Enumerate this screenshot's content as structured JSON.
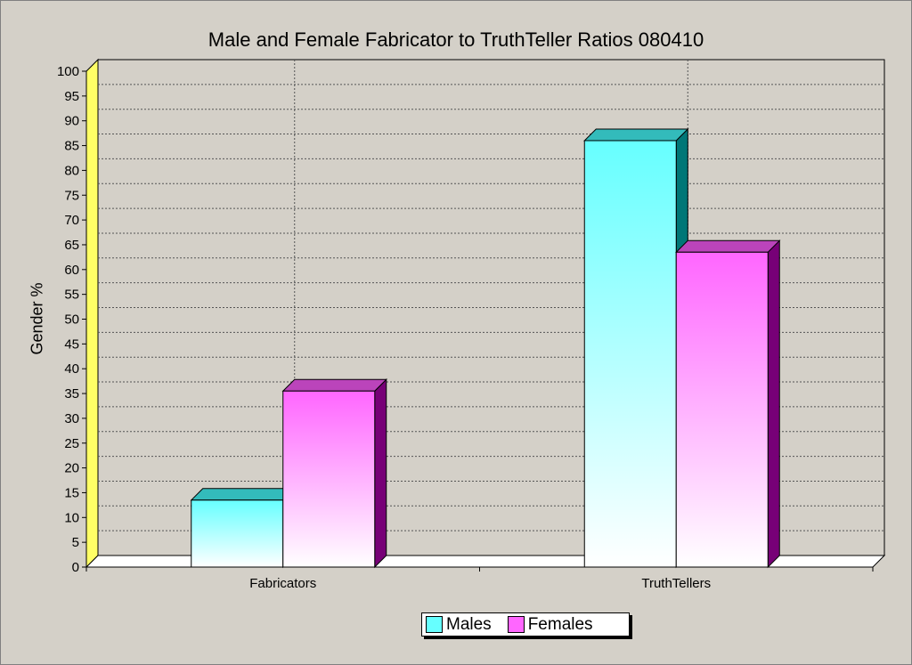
{
  "chart_data": {
    "type": "bar",
    "title": "Male and Female Fabricator to TruthTeller Ratios 080410",
    "xlabel": "",
    "ylabel": "Gender %",
    "categories": [
      "Fabricators",
      "TruthTellers"
    ],
    "series": [
      {
        "name": "Males",
        "values": [
          13.5,
          86
        ],
        "color": "#66ffff"
      },
      {
        "name": "Females",
        "values": [
          35.5,
          63.5
        ],
        "color": "#ff66ff"
      }
    ],
    "ylim": [
      0,
      100
    ],
    "yticks": [
      0,
      5,
      10,
      15,
      20,
      25,
      30,
      35,
      40,
      45,
      50,
      55,
      60,
      65,
      70,
      75,
      80,
      85,
      90,
      95,
      100
    ],
    "grid": true,
    "legend": "bottom",
    "style": "3d-gradient"
  }
}
